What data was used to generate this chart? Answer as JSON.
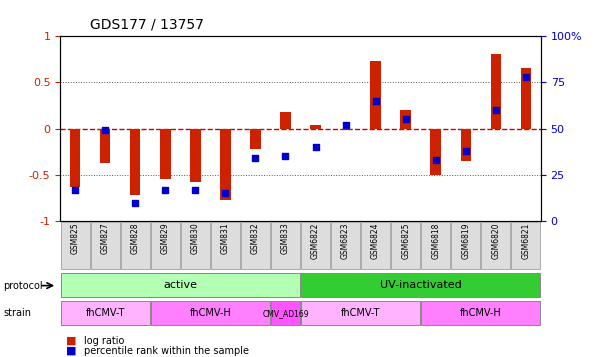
{
  "title": "GDS177 / 13757",
  "samples": [
    "GSM825",
    "GSM827",
    "GSM828",
    "GSM829",
    "GSM830",
    "GSM831",
    "GSM832",
    "GSM833",
    "GSM6822",
    "GSM6823",
    "GSM6824",
    "GSM6825",
    "GSM6818",
    "GSM6819",
    "GSM6820",
    "GSM6821"
  ],
  "log_ratio": [
    -0.63,
    -0.37,
    -0.72,
    -0.54,
    -0.58,
    -0.77,
    -0.22,
    0.18,
    0.04,
    -0.02,
    0.73,
    0.2,
    -0.5,
    -0.35,
    0.8,
    0.65
  ],
  "percentile": [
    17,
    49,
    10,
    17,
    17,
    15,
    34,
    35,
    40,
    52,
    65,
    55,
    33,
    38,
    60,
    78
  ],
  "protocol_groups": [
    {
      "label": "active",
      "start": 0,
      "end": 7,
      "color": "#b3ffb3"
    },
    {
      "label": "UV-inactivated",
      "start": 8,
      "end": 15,
      "color": "#33cc33"
    }
  ],
  "strain_groups": [
    {
      "label": "fhCMV-T",
      "start": 0,
      "end": 2,
      "color": "#ffb3ff"
    },
    {
      "label": "fhCMV-H",
      "start": 3,
      "end": 6,
      "color": "#ff80ff"
    },
    {
      "label": "CMV_AD169",
      "start": 7,
      "end": 7,
      "color": "#ff55ff"
    },
    {
      "label": "fhCMV-T",
      "start": 8,
      "end": 11,
      "color": "#ffb3ff"
    },
    {
      "label": "fhCMV-H",
      "start": 12,
      "end": 15,
      "color": "#ff80ff"
    }
  ],
  "ylim": [
    -1,
    1
  ],
  "y2lim": [
    0,
    100
  ],
  "bar_color": "#cc2200",
  "dot_color": "#0000cc",
  "zero_line_color": "#cc0000",
  "grid_color": "#555555",
  "bg_color": "#ffffff"
}
